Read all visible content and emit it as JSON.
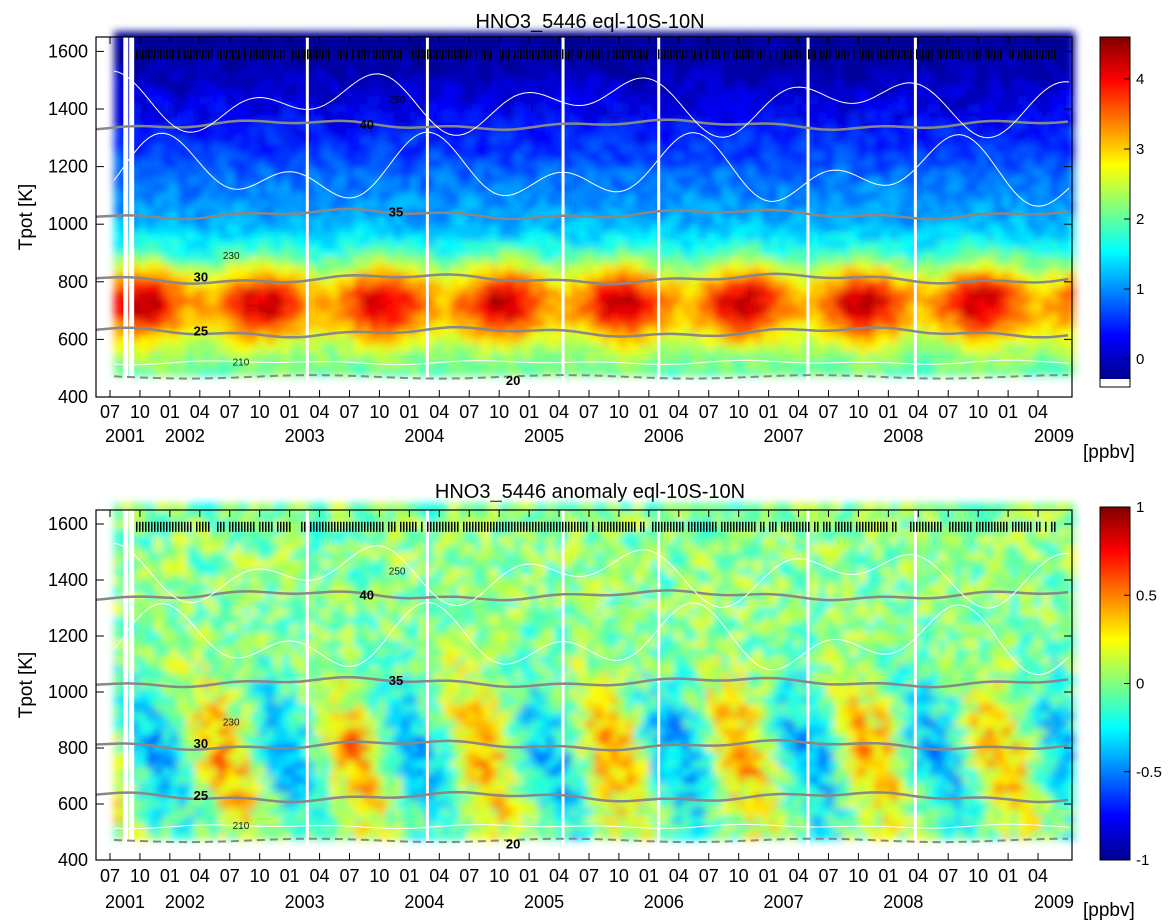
{
  "chart_data": [
    {
      "type": "heatmap",
      "title": "HNO3_5446   eql-10S-10N",
      "xlabel": "",
      "ylabel": "Tpot [K]",
      "ylim": [
        400,
        1650
      ],
      "yticks": [
        400,
        600,
        800,
        1000,
        1200,
        1400,
        1600
      ],
      "month_ticks": [
        "07",
        "10",
        "01",
        "04",
        "07",
        "10",
        "01",
        "04",
        "07",
        "10",
        "01",
        "04",
        "07",
        "10",
        "01",
        "04",
        "07",
        "10",
        "01",
        "04",
        "07",
        "10",
        "01",
        "04",
        "07",
        "10",
        "01",
        "04",
        "07",
        "10",
        "01",
        "04"
      ],
      "year_labels": [
        "2001",
        "2002",
        "2003",
        "2004",
        "2005",
        "2006",
        "2007",
        "2008",
        "2009"
      ],
      "colorbar": {
        "unit": "[ppbv]",
        "range": [
          -0.4,
          4.6
        ],
        "ticks": [
          0,
          1,
          2,
          3,
          4
        ],
        "colors": [
          "#00008f",
          "#0000ff",
          "#0080ff",
          "#00ffff",
          "#80ff80",
          "#ffff00",
          "#ff8000",
          "#ff0000",
          "#800000"
        ]
      },
      "contour_labels_gray": [
        "20",
        "25",
        "30",
        "35",
        "40"
      ],
      "contour_labels_white": [
        "210",
        "230",
        "250"
      ],
      "colors": {
        "gray_contour": "#888888",
        "white_contour": "#ffffff",
        "data_marks": "#000000"
      }
    },
    {
      "type": "heatmap",
      "title": "HNO3_5446 anomaly   eql-10S-10N",
      "xlabel": "",
      "ylabel": "Tpot [K]",
      "ylim": [
        400,
        1650
      ],
      "yticks": [
        400,
        600,
        800,
        1000,
        1200,
        1400,
        1600
      ],
      "month_ticks": [
        "07",
        "10",
        "01",
        "04",
        "07",
        "10",
        "01",
        "04",
        "07",
        "10",
        "01",
        "04",
        "07",
        "10",
        "01",
        "04",
        "07",
        "10",
        "01",
        "04",
        "07",
        "10",
        "01",
        "04",
        "07",
        "10",
        "01",
        "04",
        "07",
        "10",
        "01",
        "04"
      ],
      "year_labels": [
        "2001",
        "2002",
        "2003",
        "2004",
        "2005",
        "2006",
        "2007",
        "2008",
        "2009"
      ],
      "colorbar": {
        "unit": "[ppbv]",
        "range": [
          -1,
          1
        ],
        "ticks": [
          -1,
          -0.5,
          0,
          0.5,
          1
        ],
        "colors": [
          "#00008f",
          "#0000ff",
          "#0080ff",
          "#00ffff",
          "#80ff80",
          "#ffff00",
          "#ff8000",
          "#ff0000",
          "#800000"
        ]
      },
      "contour_labels_gray": [
        "20",
        "25",
        "30",
        "35",
        "40"
      ],
      "contour_labels_white": [
        "210",
        "230",
        "250"
      ],
      "colors": {
        "gray_contour": "#888888",
        "white_contour": "#ffffff",
        "data_marks": "#000000"
      }
    }
  ]
}
